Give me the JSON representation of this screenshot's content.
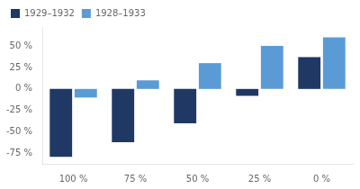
{
  "chart_data": {
    "type": "bar",
    "categories": [
      "100 %",
      "75 %",
      "50 %",
      "25 %",
      "0 %"
    ],
    "series": [
      {
        "name": "1929–1932",
        "color": "#1F3864",
        "values": [
          -79,
          -62,
          -40,
          -8,
          37
        ]
      },
      {
        "name": "1928–1933",
        "color": "#5B9BD5",
        "values": [
          -10,
          10,
          30,
          50,
          60
        ]
      }
    ],
    "ylim": [
      -87,
      72
    ],
    "yticks": [
      {
        "value": -75,
        "label": "-75 %"
      },
      {
        "value": -50,
        "label": "-50 %"
      },
      {
        "value": -25,
        "label": "-25 %"
      },
      {
        "value": 0,
        "label": "0 %"
      },
      {
        "value": 25,
        "label": "25 %"
      },
      {
        "value": 50,
        "label": "50 %"
      }
    ],
    "grid": false,
    "legend": "upper left"
  }
}
